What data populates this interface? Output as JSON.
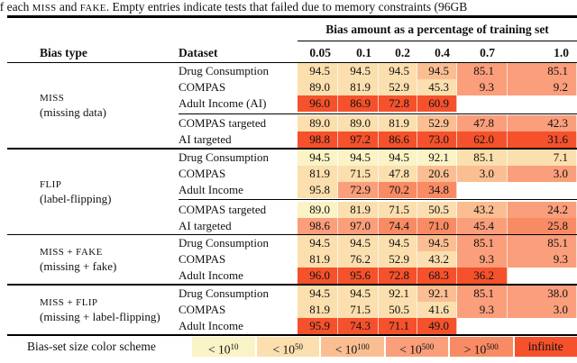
{
  "caption": {
    "pre": "of each ",
    "sc1": "MISS",
    "mid": " and ",
    "sc2": "FAKE",
    "post": ". Empty entries indicate tests that failed due to memory constraints (96GB"
  },
  "header": {
    "span_title": "Bias amount as a percentage of training set",
    "bias_type": "Bias type",
    "dataset": "Dataset",
    "amounts": [
      "0.05",
      "0.1",
      "0.2",
      "0.4",
      "0.7",
      "1.0"
    ]
  },
  "palette": {
    "levels": [
      "#FAF3C6",
      "#FBDFAE",
      "#FBBE92",
      "#FA9E7B",
      "#F98B64",
      "#F4512C"
    ],
    "text": "#111111",
    "rule": "#000000"
  },
  "groups": [
    {
      "name": "MISS",
      "desc": "(missing data)",
      "sections": [
        {
          "rows": [
            {
              "dataset": "Drug Consumption",
              "cells": [
                {
                  "v": "94.5",
                  "level": 2
                },
                {
                  "v": "94.5",
                  "level": 2
                },
                {
                  "v": "94.5",
                  "level": 2
                },
                {
                  "v": "94.5",
                  "level": 3
                },
                {
                  "v": "85.1",
                  "level": 4
                },
                {
                  "v": "85.1",
                  "level": 4
                }
              ]
            },
            {
              "dataset": "COMPAS",
              "cells": [
                {
                  "v": "89.0",
                  "level": 2
                },
                {
                  "v": "81.9",
                  "level": 2
                },
                {
                  "v": "52.9",
                  "level": 2
                },
                {
                  "v": "45.3",
                  "level": 2
                },
                {
                  "v": "9.3",
                  "level": 4
                },
                {
                  "v": "9.2",
                  "level": 4
                }
              ]
            },
            {
              "dataset": "Adult Income (AI)",
              "cells": [
                {
                  "v": "96.0",
                  "level": 6
                },
                {
                  "v": "86.9",
                  "level": 6
                },
                {
                  "v": "72.8",
                  "level": 6
                },
                {
                  "v": "60.9",
                  "level": 6
                },
                {
                  "v": "",
                  "level": 0
                },
                {
                  "v": "",
                  "level": 0
                }
              ]
            }
          ]
        },
        {
          "rows": [
            {
              "dataset": "COMPAS targeted",
              "cells": [
                {
                  "v": "89.0",
                  "level": 2
                },
                {
                  "v": "89.0",
                  "level": 2
                },
                {
                  "v": "81.9",
                  "level": 2
                },
                {
                  "v": "52.9",
                  "level": 3
                },
                {
                  "v": "47.8",
                  "level": 4
                },
                {
                  "v": "42.3",
                  "level": 4
                }
              ]
            },
            {
              "dataset": "AI targeted",
              "cells": [
                {
                  "v": "98.8",
                  "level": 6
                },
                {
                  "v": "97.2",
                  "level": 6
                },
                {
                  "v": "86.6",
                  "level": 6
                },
                {
                  "v": "73.0",
                  "level": 6
                },
                {
                  "v": "62.0",
                  "level": 6
                },
                {
                  "v": "31.6",
                  "level": 6
                }
              ]
            }
          ]
        }
      ]
    },
    {
      "name": "FLIP",
      "desc": "(label-flipping)",
      "sections": [
        {
          "rows": [
            {
              "dataset": "Drug Consumption",
              "cells": [
                {
                  "v": "94.5",
                  "level": 1
                },
                {
                  "v": "94.5",
                  "level": 1
                },
                {
                  "v": "94.5",
                  "level": 1
                },
                {
                  "v": "92.1",
                  "level": 1
                },
                {
                  "v": "85.1",
                  "level": 2
                },
                {
                  "v": "7.1",
                  "level": 2
                }
              ]
            },
            {
              "dataset": "COMPAS",
              "cells": [
                {
                  "v": "81.9",
                  "level": 2
                },
                {
                  "v": "71.5",
                  "level": 2
                },
                {
                  "v": "47.8",
                  "level": 2
                },
                {
                  "v": "20.6",
                  "level": 3
                },
                {
                  "v": "3.0",
                  "level": 3
                },
                {
                  "v": "3.0",
                  "level": 4
                }
              ]
            },
            {
              "dataset": "Adult Income",
              "cells": [
                {
                  "v": "95.8",
                  "level": 2
                },
                {
                  "v": "72.9",
                  "level": 4
                },
                {
                  "v": "70.2",
                  "level": 5
                },
                {
                  "v": "34.8",
                  "level": 5
                },
                {
                  "v": "",
                  "level": 0
                },
                {
                  "v": "",
                  "level": 0
                }
              ]
            }
          ]
        },
        {
          "rows": [
            {
              "dataset": "COMPAS targeted",
              "cells": [
                {
                  "v": "89.0",
                  "level": 1
                },
                {
                  "v": "81.9",
                  "level": 2
                },
                {
                  "v": "71.5",
                  "level": 2
                },
                {
                  "v": "50.5",
                  "level": 2
                },
                {
                  "v": "43.2",
                  "level": 3
                },
                {
                  "v": "24.2",
                  "level": 4
                }
              ]
            },
            {
              "dataset": "AI targeted",
              "cells": [
                {
                  "v": "98.6",
                  "level": 4
                },
                {
                  "v": "97.0",
                  "level": 4
                },
                {
                  "v": "74.4",
                  "level": 5
                },
                {
                  "v": "71.0",
                  "level": 5
                },
                {
                  "v": "45.4",
                  "level": 4
                },
                {
                  "v": "25.8",
                  "level": 5
                }
              ]
            }
          ]
        }
      ]
    },
    {
      "name": "MISS + FAKE",
      "desc": "(missing + fake)",
      "sections": [
        {
          "rows": [
            {
              "dataset": "Drug Consumption",
              "cells": [
                {
                  "v": "94.5",
                  "level": 2
                },
                {
                  "v": "94.5",
                  "level": 2
                },
                {
                  "v": "94.5",
                  "level": 2
                },
                {
                  "v": "94.5",
                  "level": 3
                },
                {
                  "v": "85.1",
                  "level": 4
                },
                {
                  "v": "85.1",
                  "level": 4
                }
              ]
            },
            {
              "dataset": "COMPAS",
              "cells": [
                {
                  "v": "81.9",
                  "level": 2
                },
                {
                  "v": "76.2",
                  "level": 2
                },
                {
                  "v": "52.9",
                  "level": 2
                },
                {
                  "v": "43.2",
                  "level": 2
                },
                {
                  "v": "9.3",
                  "level": 4
                },
                {
                  "v": "9.3",
                  "level": 4
                }
              ]
            },
            {
              "dataset": "Adult Income",
              "cells": [
                {
                  "v": "96.0",
                  "level": 6
                },
                {
                  "v": "95.6",
                  "level": 6
                },
                {
                  "v": "72.8",
                  "level": 6
                },
                {
                  "v": "68.3",
                  "level": 6
                },
                {
                  "v": "36.2",
                  "level": 6
                },
                {
                  "v": "",
                  "level": 0
                }
              ]
            }
          ]
        }
      ]
    },
    {
      "name": "MISS + FLIP",
      "desc": "(missing + label-flipping)",
      "sections": [
        {
          "rows": [
            {
              "dataset": "Drug Consumption",
              "cells": [
                {
                  "v": "94.5",
                  "level": 2
                },
                {
                  "v": "94.5",
                  "level": 2
                },
                {
                  "v": "92.1",
                  "level": 2
                },
                {
                  "v": "92.1",
                  "level": 3
                },
                {
                  "v": "85.1",
                  "level": 4
                },
                {
                  "v": "38.0",
                  "level": 4
                }
              ]
            },
            {
              "dataset": "COMPAS",
              "cells": [
                {
                  "v": "81.9",
                  "level": 2
                },
                {
                  "v": "71.5",
                  "level": 2
                },
                {
                  "v": "50.5",
                  "level": 2
                },
                {
                  "v": "41.6",
                  "level": 2
                },
                {
                  "v": "9.3",
                  "level": 4
                },
                {
                  "v": "3.0",
                  "level": 4
                }
              ]
            },
            {
              "dataset": "Adult Income",
              "cells": [
                {
                  "v": "95.9",
                  "level": 6
                },
                {
                  "v": "74.3",
                  "level": 6
                },
                {
                  "v": "71.1",
                  "level": 6
                },
                {
                  "v": "49.0",
                  "level": 6
                },
                {
                  "v": "",
                  "level": 0
                },
                {
                  "v": "",
                  "level": 0
                }
              ]
            }
          ]
        }
      ]
    }
  ],
  "legend": {
    "label": "Bias-set size color scheme",
    "items": [
      {
        "base": "< 10",
        "exp": "10",
        "level": 1
      },
      {
        "base": "< 10",
        "exp": "50",
        "level": 2
      },
      {
        "base": "< 10",
        "exp": "100",
        "level": 3
      },
      {
        "base": "< 10",
        "exp": "500",
        "level": 4
      },
      {
        "base": "> 10",
        "exp": "500",
        "level": 5
      },
      {
        "base": "infinite",
        "exp": "",
        "level": 6
      }
    ]
  }
}
